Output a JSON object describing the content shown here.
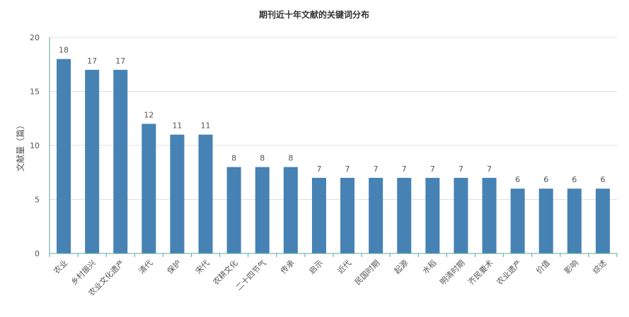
{
  "chart_data": {
    "type": "bar",
    "title": "期刊近十年文献的关键词分布",
    "xlabel": "",
    "ylabel": "文献量（篇）",
    "ylim": [
      0,
      20
    ],
    "yticks": [
      0,
      5,
      10,
      15,
      20
    ],
    "grid": true,
    "legend": "none",
    "bar_color": "#4682b4",
    "categories": [
      "农业",
      "乡村振兴",
      "农业文化遗产",
      "清代",
      "保护",
      "宋代",
      "农耕文化",
      "二十四节气",
      "传承",
      "启示",
      "近代",
      "民国时期",
      "起源",
      "水稻",
      "明清时期",
      "齐民要术",
      "农业遗产",
      "价值",
      "影响",
      "综述"
    ],
    "values": [
      18,
      17,
      17,
      12,
      11,
      11,
      8,
      8,
      8,
      7,
      7,
      7,
      7,
      7,
      7,
      7,
      6,
      6,
      6,
      6
    ]
  }
}
